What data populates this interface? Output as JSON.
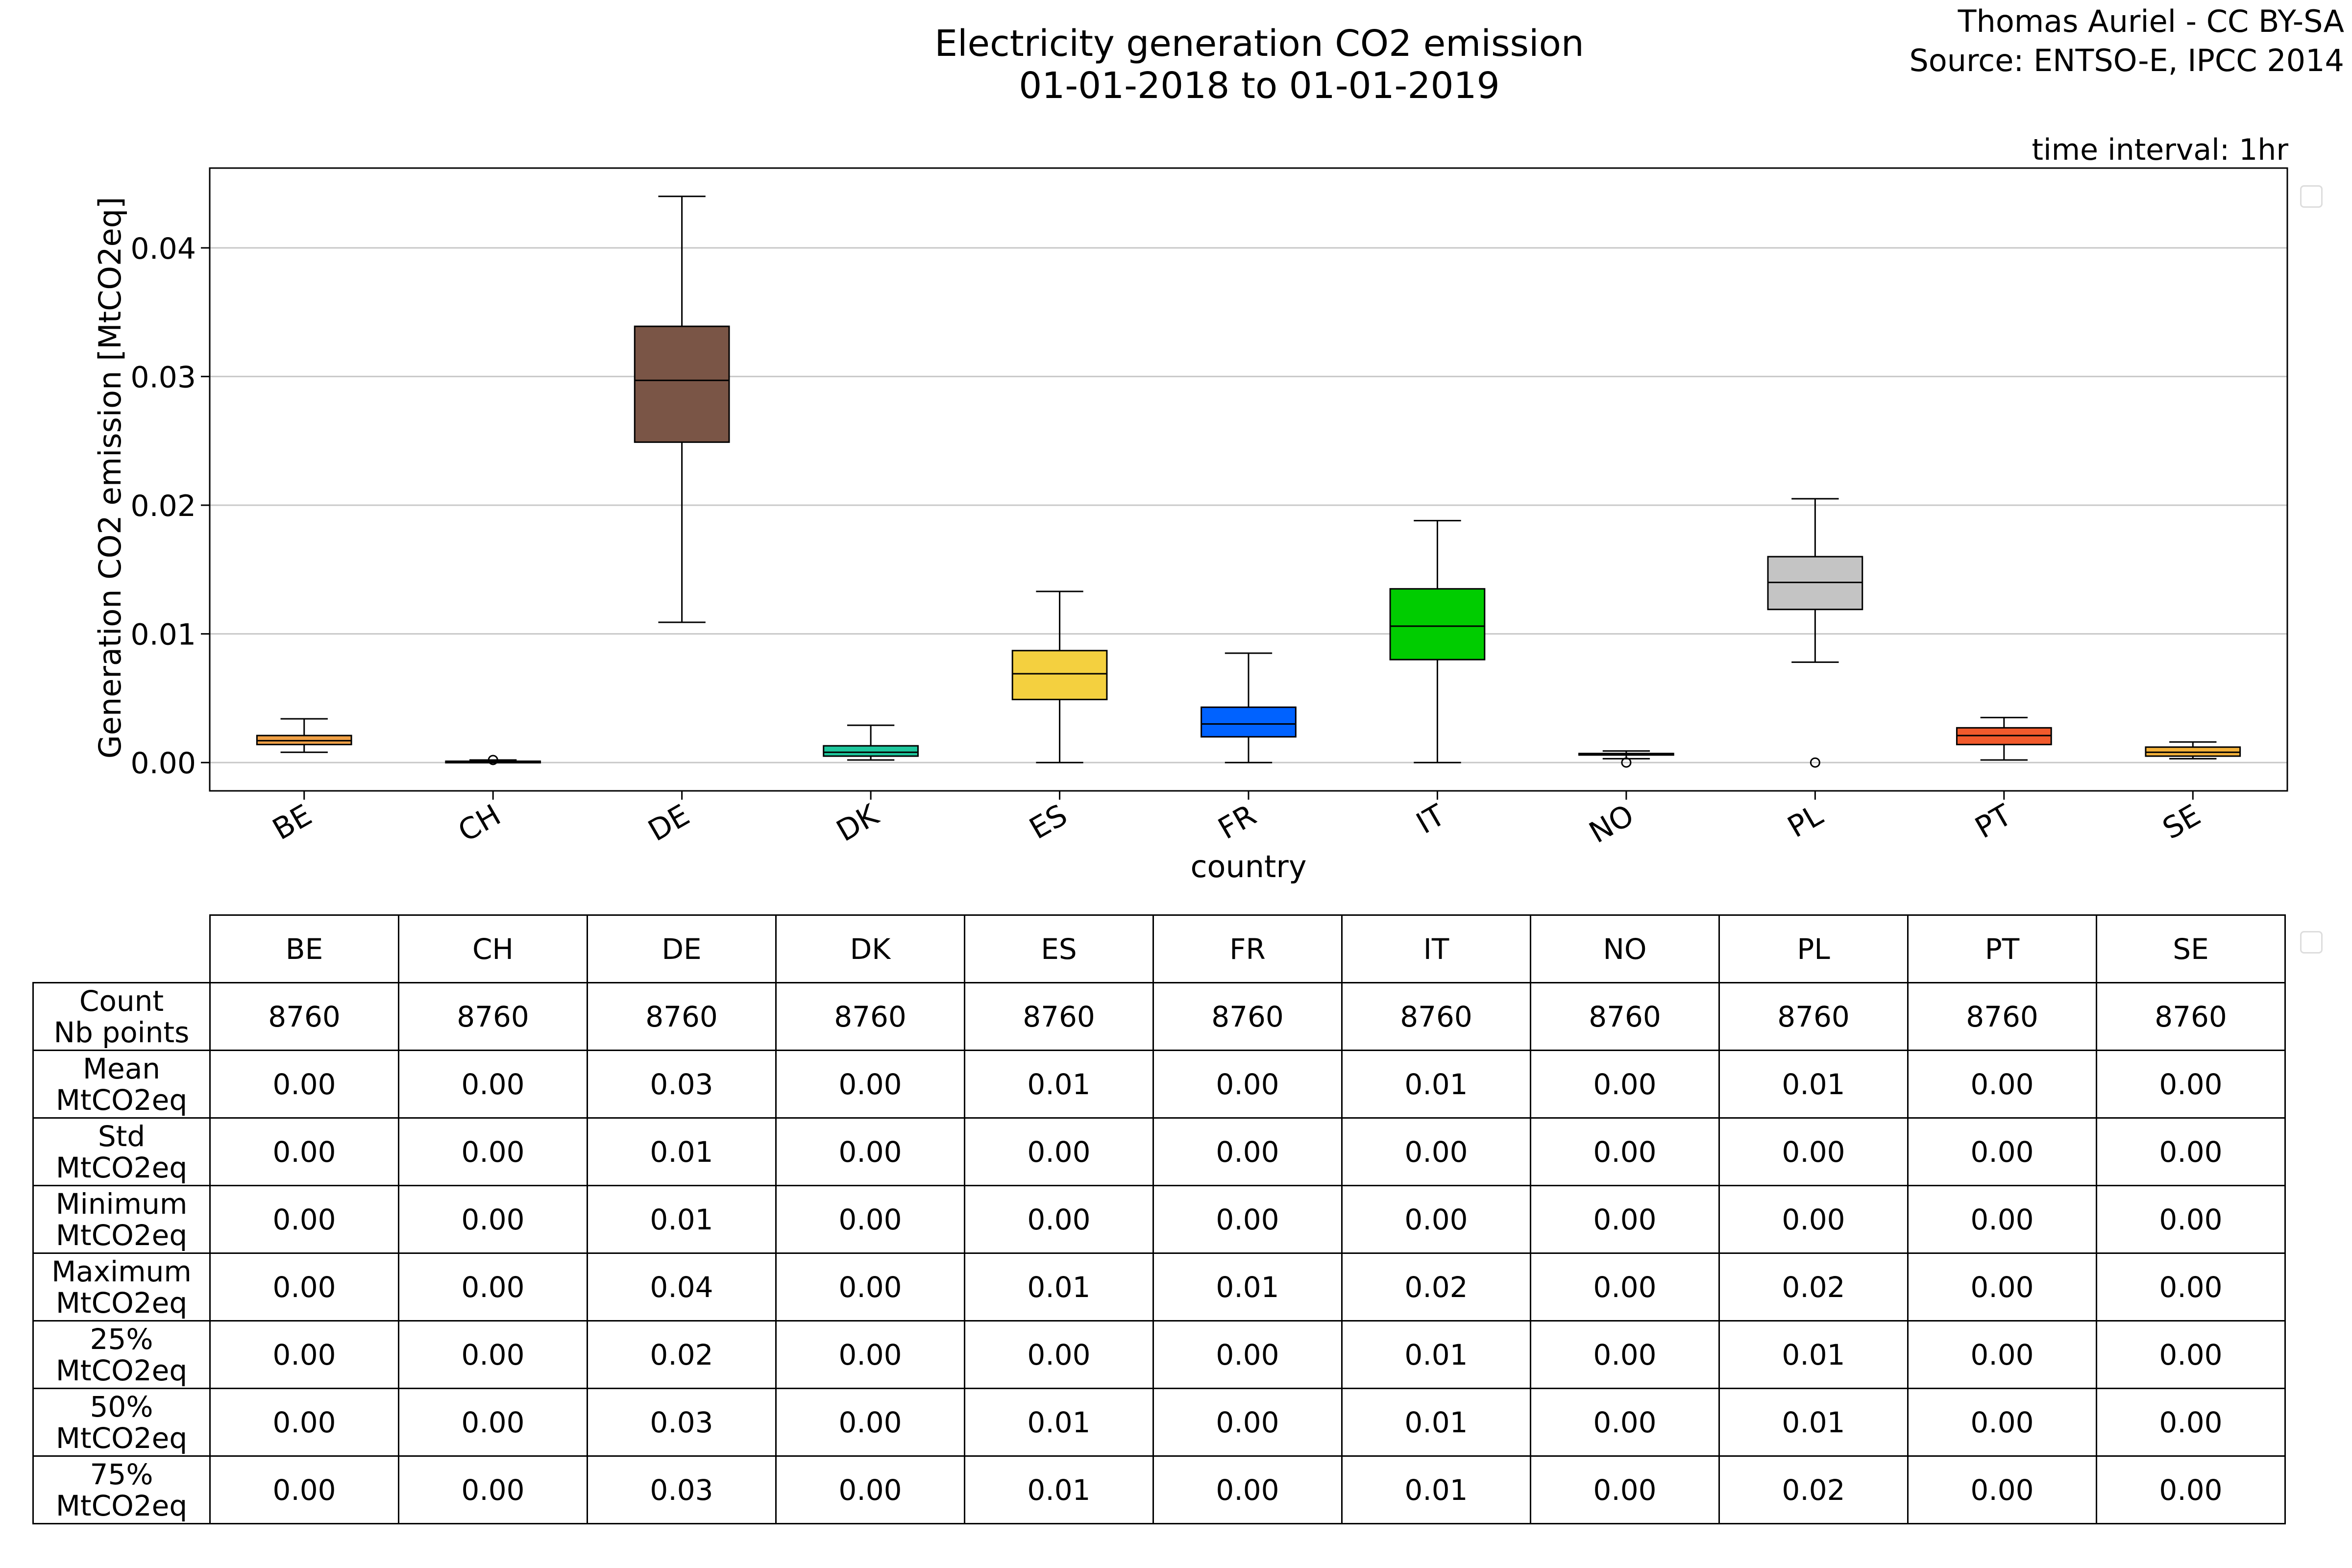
{
  "header": {
    "title_line1": "Electricity generation CO2 emission",
    "title_line2": "01-01-2018 to 01-01-2019",
    "credit_line1": "Thomas Auriel - CC BY-SA",
    "credit_line2": "Source: ENTSO-E, IPCC 2014",
    "interval": "time interval: 1hr"
  },
  "chart_data": {
    "type": "box",
    "xlabel": "country",
    "ylabel": "Generation CO2 emission [MtCO2eq]",
    "ylim": [
      -0.0022,
      0.0462
    ],
    "yticks": [
      0.0,
      0.01,
      0.02,
      0.03,
      0.04
    ],
    "ytick_labels": [
      "0.00",
      "0.01",
      "0.02",
      "0.03",
      "0.04"
    ],
    "grid": "horizontal",
    "categories": [
      "BE",
      "CH",
      "DE",
      "DK",
      "ES",
      "FR",
      "IT",
      "NO",
      "PL",
      "PT",
      "SE"
    ],
    "boxes": [
      {
        "category": "BE",
        "whisker_low": 0.0008,
        "q1": 0.0014,
        "median": 0.0017,
        "q3": 0.0021,
        "whisker_high": 0.0034,
        "outliers": [],
        "color": "#f0a046"
      },
      {
        "category": "CH",
        "whisker_low": 0.0,
        "q1": 0.0,
        "median": 0.0001,
        "q3": 0.0001,
        "whisker_high": 0.0002,
        "outliers": [
          0.0002
        ],
        "color": "#e8a020"
      },
      {
        "category": "DE",
        "whisker_low": 0.0109,
        "q1": 0.0249,
        "median": 0.0297,
        "q3": 0.0339,
        "whisker_high": 0.044,
        "outliers": [],
        "color": "#7a5546"
      },
      {
        "category": "DK",
        "whisker_low": 0.0002,
        "q1": 0.0005,
        "median": 0.0008,
        "q3": 0.0013,
        "whisker_high": 0.0029,
        "outliers": [],
        "color": "#1fc79d"
      },
      {
        "category": "ES",
        "whisker_low": 0.0,
        "q1": 0.0049,
        "median": 0.0069,
        "q3": 0.0087,
        "whisker_high": 0.0133,
        "outliers": [],
        "color": "#f4d03f"
      },
      {
        "category": "FR",
        "whisker_low": 0.0,
        "q1": 0.002,
        "median": 0.003,
        "q3": 0.0043,
        "whisker_high": 0.0085,
        "outliers": [],
        "color": "#0062ff"
      },
      {
        "category": "IT",
        "whisker_low": 0.0,
        "q1": 0.008,
        "median": 0.0106,
        "q3": 0.0135,
        "whisker_high": 0.0188,
        "outliers": [],
        "color": "#00cc00"
      },
      {
        "category": "NO",
        "whisker_low": 0.0003,
        "q1": 0.0006,
        "median": 0.0007,
        "q3": 0.0007,
        "whisker_high": 0.0009,
        "outliers": [
          0.0
        ],
        "color": "#2c2c2c"
      },
      {
        "category": "PL",
        "whisker_low": 0.0078,
        "q1": 0.0119,
        "median": 0.014,
        "q3": 0.016,
        "whisker_high": 0.0205,
        "outliers": [
          0.0
        ],
        "color": "#c4c4c4"
      },
      {
        "category": "PT",
        "whisker_low": 0.0002,
        "q1": 0.0014,
        "median": 0.0021,
        "q3": 0.0027,
        "whisker_high": 0.0035,
        "outliers": [],
        "color": "#f25a2c"
      },
      {
        "category": "SE",
        "whisker_low": 0.0003,
        "q1": 0.0005,
        "median": 0.0008,
        "q3": 0.0012,
        "whisker_high": 0.0016,
        "outliers": [],
        "color": "#f4b23a"
      }
    ]
  },
  "table": {
    "columns": [
      "BE",
      "CH",
      "DE",
      "DK",
      "ES",
      "FR",
      "IT",
      "NO",
      "PL",
      "PT",
      "SE"
    ],
    "rows": [
      {
        "label_line1": "Count",
        "label_line2": "Nb points",
        "values": [
          "8760",
          "8760",
          "8760",
          "8760",
          "8760",
          "8760",
          "8760",
          "8760",
          "8760",
          "8760",
          "8760"
        ]
      },
      {
        "label_line1": "Mean",
        "label_line2": "MtCO2eq",
        "values": [
          "0.00",
          "0.00",
          "0.03",
          "0.00",
          "0.01",
          "0.00",
          "0.01",
          "0.00",
          "0.01",
          "0.00",
          "0.00"
        ]
      },
      {
        "label_line1": "Std",
        "label_line2": "MtCO2eq",
        "values": [
          "0.00",
          "0.00",
          "0.01",
          "0.00",
          "0.00",
          "0.00",
          "0.00",
          "0.00",
          "0.00",
          "0.00",
          "0.00"
        ]
      },
      {
        "label_line1": "Minimum",
        "label_line2": "MtCO2eq",
        "values": [
          "0.00",
          "0.00",
          "0.01",
          "0.00",
          "0.00",
          "0.00",
          "0.00",
          "0.00",
          "0.00",
          "0.00",
          "0.00"
        ]
      },
      {
        "label_line1": "Maximum",
        "label_line2": "MtCO2eq",
        "values": [
          "0.00",
          "0.00",
          "0.04",
          "0.00",
          "0.01",
          "0.01",
          "0.02",
          "0.00",
          "0.02",
          "0.00",
          "0.00"
        ]
      },
      {
        "label_line1": "25%",
        "label_line2": "MtCO2eq",
        "values": [
          "0.00",
          "0.00",
          "0.02",
          "0.00",
          "0.00",
          "0.00",
          "0.01",
          "0.00",
          "0.01",
          "0.00",
          "0.00"
        ]
      },
      {
        "label_line1": "50%",
        "label_line2": "MtCO2eq",
        "values": [
          "0.00",
          "0.00",
          "0.03",
          "0.00",
          "0.01",
          "0.00",
          "0.01",
          "0.00",
          "0.01",
          "0.00",
          "0.00"
        ]
      },
      {
        "label_line1": "75%",
        "label_line2": "MtCO2eq",
        "values": [
          "0.00",
          "0.00",
          "0.03",
          "0.00",
          "0.01",
          "0.00",
          "0.01",
          "0.00",
          "0.02",
          "0.00",
          "0.00"
        ]
      }
    ]
  }
}
